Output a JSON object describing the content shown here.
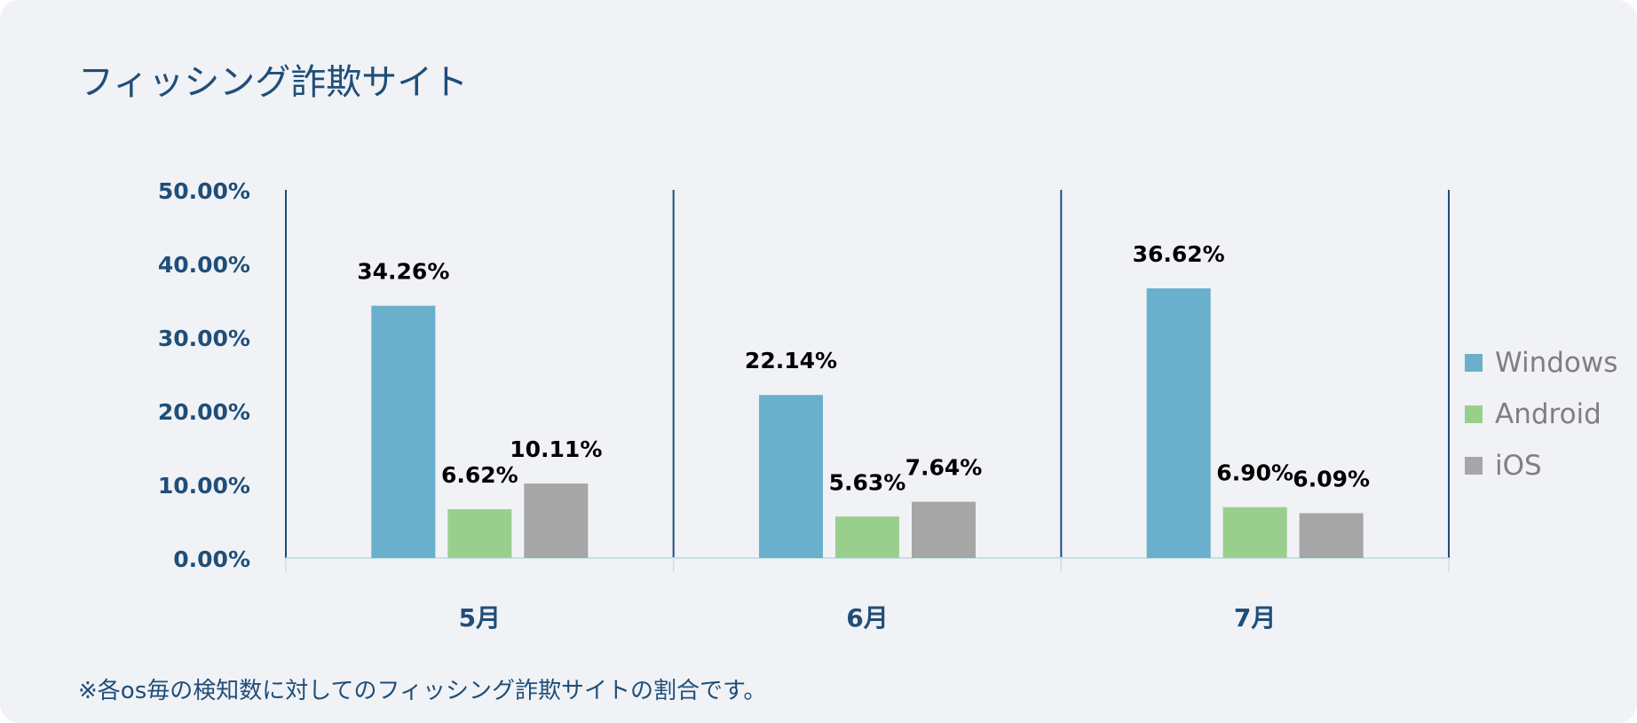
{
  "title": "フィッシング詐欺サイト",
  "footnote": "※各os毎の検知数に対してのフィッシング詐欺サイトの割合です。",
  "chart_data": {
    "type": "bar",
    "categories": [
      "5月",
      "6月",
      "7月"
    ],
    "series": [
      {
        "name": "Windows",
        "color": "#6ab0cc",
        "values": [
          34.26,
          22.14,
          36.62
        ],
        "labels": [
          "34.26%",
          "22.14%",
          "36.62%"
        ]
      },
      {
        "name": "Android",
        "color": "#99cf8d",
        "values": [
          6.62,
          5.63,
          6.9
        ],
        "labels": [
          "6.62%",
          "5.63%",
          "6.90%"
        ]
      },
      {
        "name": "iOS",
        "color": "#a6a6a6",
        "values": [
          10.11,
          7.64,
          6.09
        ],
        "labels": [
          "10.11%",
          "7.64%",
          "6.09%"
        ]
      }
    ],
    "ylim": [
      0,
      50
    ],
    "yticks": [
      "0.00%",
      "10.00%",
      "20.00%",
      "30.00%",
      "40.00%",
      "50.00%"
    ],
    "legend_position": "right",
    "colors": {
      "axis_text": "#1f4e79",
      "divider": "#1f4e79",
      "baseline": "#c9dfe6"
    }
  }
}
